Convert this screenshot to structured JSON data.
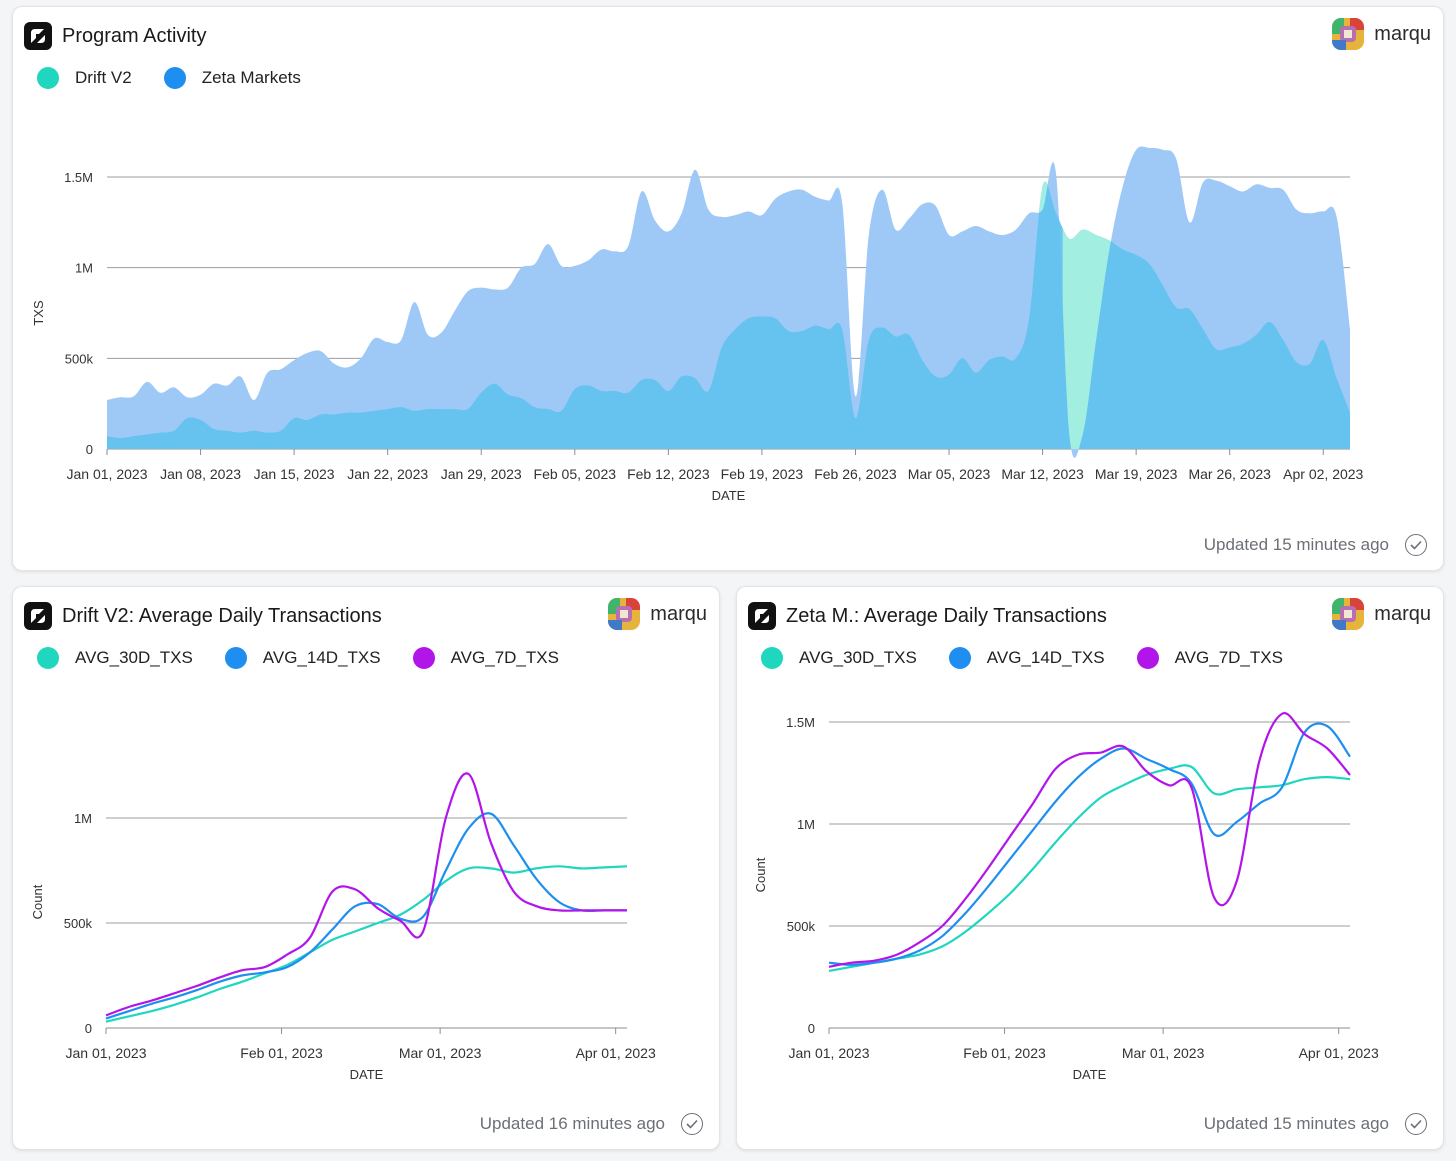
{
  "colors": {
    "teal": "#1fd6bf",
    "blue": "#1e8ff0",
    "purple": "#b215ea",
    "zeta_area": "#9ec9f7",
    "drift_area": "#66c3ef",
    "drift_peak_area": "#a2eee0"
  },
  "top": {
    "title": "Program Activity",
    "user": "marqu",
    "updated": "Updated 15 minutes ago",
    "legend": [
      {
        "label": "Drift V2",
        "color": "#1fd6bf"
      },
      {
        "label": "Zeta Markets",
        "color": "#1e8ff0"
      }
    ]
  },
  "left": {
    "title": "Drift V2: Average Daily Transactions",
    "user": "marqu",
    "updated": "Updated 16 minutes ago",
    "legend": [
      {
        "label": "AVG_30D_TXS",
        "color": "#1fd6bf"
      },
      {
        "label": "AVG_14D_TXS",
        "color": "#1e8ff0"
      },
      {
        "label": "AVG_7D_TXS",
        "color": "#b215ea"
      }
    ]
  },
  "right": {
    "title": "Zeta M.: Average Daily Transactions",
    "user": "marqu",
    "updated": "Updated 15 minutes ago",
    "legend": [
      {
        "label": "AVG_30D_TXS",
        "color": "#1fd6bf"
      },
      {
        "label": "AVG_14D_TXS",
        "color": "#1e8ff0"
      },
      {
        "label": "AVG_7D_TXS",
        "color": "#b215ea"
      }
    ]
  },
  "chart_data": [
    {
      "id": "program-activity",
      "type": "area",
      "stacked": false,
      "xlabel": "DATE",
      "ylabel": "TXS",
      "ylim": [
        0,
        1500000
      ],
      "y_ticks": [
        0,
        500000,
        1000000,
        1500000
      ],
      "y_tick_labels": [
        "0",
        "500k",
        "1M",
        "1.5M"
      ],
      "x_tick_labels": [
        "Jan 01, 2023",
        "Jan 08, 2023",
        "Jan 15, 2023",
        "Jan 22, 2023",
        "Jan 29, 2023",
        "Feb 05, 2023",
        "Feb 12, 2023",
        "Feb 19, 2023",
        "Feb 26, 2023",
        "Mar 05, 2023",
        "Mar 12, 2023",
        "Mar 19, 2023",
        "Mar 26, 2023",
        "Apr 02, 2023"
      ],
      "grid": true,
      "legend_position": "top-left",
      "x": [
        "2023-01-01",
        "2023-01-02",
        "2023-01-03",
        "2023-01-04",
        "2023-01-05",
        "2023-01-06",
        "2023-01-07",
        "2023-01-08",
        "2023-01-09",
        "2023-01-10",
        "2023-01-11",
        "2023-01-12",
        "2023-01-13",
        "2023-01-14",
        "2023-01-15",
        "2023-01-16",
        "2023-01-17",
        "2023-01-18",
        "2023-01-19",
        "2023-01-20",
        "2023-01-21",
        "2023-01-22",
        "2023-01-23",
        "2023-01-24",
        "2023-01-25",
        "2023-01-26",
        "2023-01-27",
        "2023-01-28",
        "2023-01-29",
        "2023-01-30",
        "2023-01-31",
        "2023-02-01",
        "2023-02-02",
        "2023-02-03",
        "2023-02-04",
        "2023-02-05",
        "2023-02-06",
        "2023-02-07",
        "2023-02-08",
        "2023-02-09",
        "2023-02-10",
        "2023-02-11",
        "2023-02-12",
        "2023-02-13",
        "2023-02-14",
        "2023-02-15",
        "2023-02-16",
        "2023-02-17",
        "2023-02-18",
        "2023-02-19",
        "2023-02-20",
        "2023-02-21",
        "2023-02-22",
        "2023-02-23",
        "2023-02-24",
        "2023-02-25",
        "2023-02-26",
        "2023-02-27",
        "2023-02-28",
        "2023-03-01",
        "2023-03-02",
        "2023-03-03",
        "2023-03-04",
        "2023-03-05",
        "2023-03-06",
        "2023-03-07",
        "2023-03-08",
        "2023-03-09",
        "2023-03-10",
        "2023-03-11",
        "2023-03-12",
        "2023-03-13",
        "2023-03-14",
        "2023-03-15",
        "2023-03-16",
        "2023-03-17",
        "2023-03-18",
        "2023-03-19",
        "2023-03-20",
        "2023-03-21",
        "2023-03-22",
        "2023-03-23",
        "2023-03-24",
        "2023-03-25",
        "2023-03-26",
        "2023-03-27",
        "2023-03-28",
        "2023-03-29",
        "2023-03-30",
        "2023-03-31",
        "2023-04-01",
        "2023-04-02",
        "2023-04-03",
        "2023-04-04"
      ],
      "series": [
        {
          "name": "Zeta Markets",
          "color": "#1e8ff0",
          "values": [
            270000,
            285000,
            290000,
            370000,
            310000,
            340000,
            285000,
            300000,
            360000,
            350000,
            400000,
            270000,
            420000,
            440000,
            490000,
            530000,
            540000,
            470000,
            450000,
            500000,
            610000,
            590000,
            600000,
            810000,
            630000,
            640000,
            760000,
            870000,
            890000,
            880000,
            890000,
            1000000,
            1020000,
            1130000,
            1010000,
            1010000,
            1040000,
            1100000,
            1090000,
            1120000,
            1420000,
            1260000,
            1200000,
            1300000,
            1540000,
            1320000,
            1280000,
            1290000,
            1310000,
            1290000,
            1380000,
            1420000,
            1430000,
            1390000,
            1370000,
            1360000,
            290000,
            1180000,
            1430000,
            1210000,
            1270000,
            1350000,
            1340000,
            1180000,
            1200000,
            1230000,
            1200000,
            1180000,
            1210000,
            1300000,
            1320000,
            1520000,
            80000,
            80000,
            600000,
            1100000,
            1450000,
            1650000,
            1660000,
            1650000,
            1600000,
            1250000,
            1470000,
            1480000,
            1450000,
            1420000,
            1460000,
            1440000,
            1430000,
            1320000,
            1300000,
            1310000,
            1280000,
            660000
          ],
          "fill": "#9ec9f7"
        },
        {
          "name": "Drift V2",
          "color": "#1fd6bf",
          "values": [
            70000,
            60000,
            70000,
            80000,
            90000,
            100000,
            170000,
            160000,
            110000,
            100000,
            90000,
            100000,
            90000,
            100000,
            170000,
            160000,
            190000,
            190000,
            200000,
            200000,
            210000,
            220000,
            230000,
            210000,
            220000,
            220000,
            220000,
            220000,
            310000,
            360000,
            300000,
            280000,
            230000,
            220000,
            210000,
            330000,
            350000,
            320000,
            320000,
            310000,
            380000,
            380000,
            320000,
            400000,
            390000,
            320000,
            560000,
            660000,
            720000,
            730000,
            720000,
            650000,
            650000,
            680000,
            660000,
            660000,
            170000,
            600000,
            670000,
            620000,
            630000,
            490000,
            400000,
            410000,
            500000,
            420000,
            490000,
            510000,
            500000,
            720000,
            1450000,
            1300000,
            1160000,
            1210000,
            1180000,
            1150000,
            1100000,
            1070000,
            1020000,
            900000,
            780000,
            770000,
            660000,
            550000,
            560000,
            580000,
            630000,
            700000,
            600000,
            480000,
            470000,
            600000,
            390000,
            200000
          ],
          "fill": "#66c3ef",
          "peak_fill": "#a2eee0"
        }
      ]
    },
    {
      "id": "drift-avg",
      "type": "line",
      "xlabel": "DATE",
      "ylabel": "Count",
      "ylim": [
        0,
        1200000
      ],
      "y_ticks": [
        0,
        500000,
        1000000
      ],
      "y_tick_labels": [
        "0",
        "500k",
        "1M"
      ],
      "x_tick_labels": [
        "Jan 01, 2023",
        "Feb 01, 2023",
        "Mar 01, 2023",
        "Apr 01, 2023"
      ],
      "grid": true,
      "legend_position": "top-left",
      "x": [
        "2023-01-01",
        "2023-01-05",
        "2023-01-09",
        "2023-01-13",
        "2023-01-17",
        "2023-01-21",
        "2023-01-25",
        "2023-01-29",
        "2023-02-02",
        "2023-02-06",
        "2023-02-10",
        "2023-02-14",
        "2023-02-18",
        "2023-02-22",
        "2023-02-26",
        "2023-03-02",
        "2023-03-06",
        "2023-03-10",
        "2023-03-14",
        "2023-03-18",
        "2023-03-22",
        "2023-03-26",
        "2023-03-30",
        "2023-04-03"
      ],
      "series": [
        {
          "name": "AVG_30D_TXS",
          "color": "#1fd6bf",
          "values": [
            30000,
            55000,
            80000,
            110000,
            145000,
            185000,
            220000,
            260000,
            300000,
            360000,
            420000,
            460000,
            500000,
            540000,
            610000,
            700000,
            760000,
            760000,
            740000,
            760000,
            770000,
            760000,
            765000,
            770000
          ]
        },
        {
          "name": "AVG_14D_TXS",
          "color": "#1e8ff0",
          "values": [
            45000,
            80000,
            115000,
            145000,
            180000,
            220000,
            250000,
            265000,
            290000,
            360000,
            470000,
            580000,
            590000,
            520000,
            530000,
            750000,
            950000,
            1020000,
            870000,
            710000,
            600000,
            560000,
            560000,
            560000
          ]
        },
        {
          "name": "AVG_7D_TXS",
          "color": "#b215ea",
          "values": [
            60000,
            100000,
            130000,
            165000,
            200000,
            240000,
            275000,
            290000,
            350000,
            430000,
            650000,
            660000,
            570000,
            510000,
            460000,
            1000000,
            1210000,
            880000,
            650000,
            580000,
            560000,
            560000,
            560000,
            560000
          ]
        }
      ]
    },
    {
      "id": "zeta-avg",
      "type": "line",
      "xlabel": "DATE",
      "ylabel": "Count",
      "ylim": [
        0,
        1500000
      ],
      "y_ticks": [
        0,
        500000,
        1000000,
        1500000
      ],
      "y_tick_labels": [
        "0",
        "500k",
        "1M",
        "1.5M"
      ],
      "x_tick_labels": [
        "Jan 01, 2023",
        "Feb 01, 2023",
        "Mar 01, 2023",
        "Apr 01, 2023"
      ],
      "grid": true,
      "legend_position": "top-left",
      "x": [
        "2023-01-01",
        "2023-01-05",
        "2023-01-09",
        "2023-01-13",
        "2023-01-17",
        "2023-01-21",
        "2023-01-25",
        "2023-01-29",
        "2023-02-02",
        "2023-02-06",
        "2023-02-10",
        "2023-02-14",
        "2023-02-18",
        "2023-02-22",
        "2023-02-26",
        "2023-03-02",
        "2023-03-06",
        "2023-03-10",
        "2023-03-14",
        "2023-03-18",
        "2023-03-22",
        "2023-03-26",
        "2023-03-30",
        "2023-04-03"
      ],
      "series": [
        {
          "name": "AVG_30D_TXS",
          "color": "#1fd6bf",
          "values": [
            280000,
            300000,
            320000,
            340000,
            360000,
            400000,
            470000,
            560000,
            660000,
            780000,
            910000,
            1030000,
            1130000,
            1190000,
            1240000,
            1270000,
            1280000,
            1150000,
            1170000,
            1180000,
            1190000,
            1220000,
            1230000,
            1220000
          ]
        },
        {
          "name": "AVG_14D_TXS",
          "color": "#1e8ff0",
          "values": [
            320000,
            310000,
            320000,
            340000,
            380000,
            450000,
            560000,
            690000,
            830000,
            970000,
            1110000,
            1230000,
            1320000,
            1370000,
            1320000,
            1270000,
            1200000,
            950000,
            1010000,
            1100000,
            1180000,
            1450000,
            1480000,
            1330000
          ]
        },
        {
          "name": "AVG_7D_TXS",
          "color": "#b215ea",
          "values": [
            300000,
            320000,
            330000,
            360000,
            420000,
            500000,
            630000,
            780000,
            940000,
            1100000,
            1270000,
            1340000,
            1350000,
            1380000,
            1260000,
            1190000,
            1180000,
            640000,
            720000,
            1310000,
            1540000,
            1440000,
            1370000,
            1240000
          ]
        }
      ]
    }
  ]
}
